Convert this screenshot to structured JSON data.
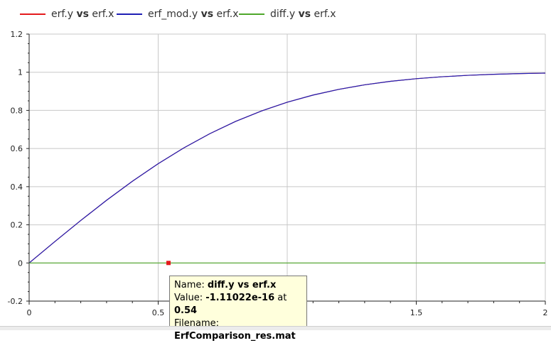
{
  "chart_data": {
    "type": "line",
    "xlim": [
      0,
      2
    ],
    "ylim": [
      -0.2,
      1.2
    ],
    "x_ticks": [
      "0",
      "0.5",
      "1",
      "1.5",
      "2"
    ],
    "y_ticks": [
      "-0.2",
      "0",
      "0.2",
      "0.4",
      "0.6",
      "0.8",
      "1",
      "1.2"
    ],
    "grid": true,
    "legend_position": "top",
    "series": [
      {
        "name_y": "erf.y",
        "name_vs": "vs",
        "name_x": "erf.x",
        "color": "#e41a1c",
        "x": [
          0,
          0.1,
          0.2,
          0.3,
          0.4,
          0.5,
          0.6,
          0.7,
          0.8,
          0.9,
          1.0,
          1.1,
          1.2,
          1.3,
          1.4,
          1.5,
          1.6,
          1.7,
          1.8,
          1.9,
          2.0
        ],
        "y": [
          0,
          0.1125,
          0.2227,
          0.3286,
          0.4284,
          0.5205,
          0.6039,
          0.6778,
          0.7421,
          0.7969,
          0.8427,
          0.8802,
          0.9103,
          0.934,
          0.9523,
          0.9661,
          0.9763,
          0.9838,
          0.9891,
          0.9928,
          0.9953
        ]
      },
      {
        "name_y": "erf_mod.y",
        "name_vs": "vs",
        "name_x": "erf.x",
        "color": "#1f1fb4",
        "x": [
          0,
          0.1,
          0.2,
          0.3,
          0.4,
          0.5,
          0.6,
          0.7,
          0.8,
          0.9,
          1.0,
          1.1,
          1.2,
          1.3,
          1.4,
          1.5,
          1.6,
          1.7,
          1.8,
          1.9,
          2.0
        ],
        "y": [
          0,
          0.1125,
          0.2227,
          0.3286,
          0.4284,
          0.5205,
          0.6039,
          0.6778,
          0.7421,
          0.7969,
          0.8427,
          0.8802,
          0.9103,
          0.934,
          0.9523,
          0.9661,
          0.9763,
          0.9838,
          0.9891,
          0.9928,
          0.9953
        ]
      },
      {
        "name_y": "diff.y",
        "name_vs": "vs",
        "name_x": "erf.x",
        "color": "#4ea72a",
        "x": [
          0,
          2.0
        ],
        "y": [
          0,
          0
        ]
      }
    ],
    "marker": {
      "x": 0.54,
      "y": 0,
      "color": "#e41a1c"
    }
  },
  "tooltip": {
    "name_label": "Name:",
    "name_value": "diff.y vs erf.x",
    "value_label": "Value:",
    "value_value": "-1.11022e-16",
    "at_label": "at",
    "at_value": "0.54",
    "filename_label": "Filename:",
    "filename_value": "ErfComparison_res.mat"
  }
}
